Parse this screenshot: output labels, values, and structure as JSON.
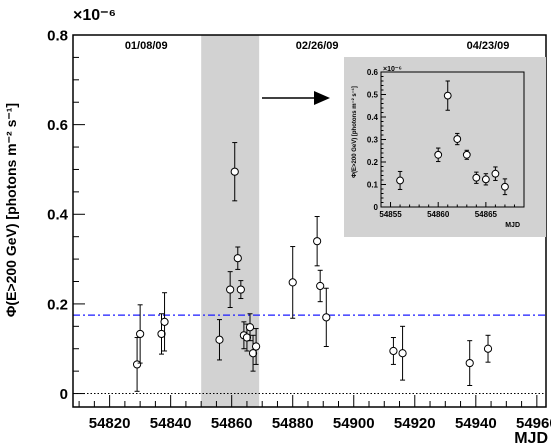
{
  "chart_data": [
    {
      "type": "scatter",
      "title": "",
      "xlabel": "MJD",
      "ylabel": "Φ(E>200 GeV) [photons m⁻² s⁻¹]",
      "y_multiplier": "×10⁻⁶",
      "xlim": [
        54808,
        54963
      ],
      "ylim": [
        -0.03,
        0.8
      ],
      "x_ticks": [
        54820,
        54840,
        54860,
        54880,
        54900,
        54920,
        54940,
        54960
      ],
      "x_tick_labels": [
        "54820",
        "54840",
        "54860",
        "54880",
        "54900",
        "54920",
        "54940",
        "54960"
      ],
      "y_ticks": [
        0,
        0.2,
        0.4,
        0.6,
        0.8
      ],
      "y_tick_labels": [
        "0",
        "0.2",
        "0.4",
        "0.6",
        "0.8"
      ],
      "date_annotations": [
        {
          "x": 54832,
          "text": "01/08/09"
        },
        {
          "x": 54888,
          "text": "02/26/09"
        },
        {
          "x": 54944,
          "text": "04/23/09"
        }
      ],
      "highlight_region": [
        54850,
        54869
      ],
      "mean_line": 0.175,
      "zero_line": 0,
      "points": [
        {
          "x": 54829,
          "y": 0.065,
          "err": 0.06
        },
        {
          "x": 54830,
          "y": 0.133,
          "err": 0.065
        },
        {
          "x": 54837,
          "y": 0.133,
          "err": 0.045
        },
        {
          "x": 54838,
          "y": 0.16,
          "err": 0.065
        },
        {
          "x": 54856,
          "y": 0.12,
          "err": 0.045
        },
        {
          "x": 54859.5,
          "y": 0.232,
          "err": 0.04
        },
        {
          "x": 54861,
          "y": 0.495,
          "err": 0.065
        },
        {
          "x": 54862,
          "y": 0.302,
          "err": 0.025
        },
        {
          "x": 54863,
          "y": 0.232,
          "err": 0.02
        },
        {
          "x": 54864,
          "y": 0.13,
          "err": 0.03
        },
        {
          "x": 54865,
          "y": 0.125,
          "err": 0.03
        },
        {
          "x": 54866,
          "y": 0.148,
          "err": 0.03
        },
        {
          "x": 54867,
          "y": 0.09,
          "err": 0.04
        },
        {
          "x": 54868,
          "y": 0.105,
          "err": 0.04
        },
        {
          "x": 54880,
          "y": 0.248,
          "err": 0.08
        },
        {
          "x": 54888,
          "y": 0.34,
          "err": 0.055
        },
        {
          "x": 54889,
          "y": 0.24,
          "err": 0.035
        },
        {
          "x": 54891,
          "y": 0.17,
          "err": 0.065
        },
        {
          "x": 54913,
          "y": 0.095,
          "err": 0.03
        },
        {
          "x": 54916,
          "y": 0.09,
          "err": 0.06
        },
        {
          "x": 54938,
          "y": 0.068,
          "err": 0.05
        },
        {
          "x": 54944,
          "y": 0.1,
          "err": 0.03
        }
      ]
    },
    {
      "type": "scatter",
      "title": "",
      "xlabel": "MJD",
      "ylabel": "Φ(E>200 GeV) [photons m⁻² s⁻¹]",
      "y_multiplier": "×10⁻⁶",
      "xlim": [
        54854,
        54869
      ],
      "ylim": [
        0,
        0.6
      ],
      "x_ticks": [
        54855,
        54860,
        54865
      ],
      "x_tick_labels": [
        "54855",
        "54860",
        "54865"
      ],
      "y_ticks": [
        0,
        0.1,
        0.2,
        0.3,
        0.4,
        0.5,
        0.6
      ],
      "y_tick_labels": [
        "0",
        "0.1",
        "0.2",
        "0.3",
        "0.4",
        "0.5",
        "0.6"
      ],
      "points": [
        {
          "x": 54856,
          "y": 0.118,
          "err": 0.04
        },
        {
          "x": 54860,
          "y": 0.232,
          "err": 0.03
        },
        {
          "x": 54861,
          "y": 0.495,
          "err": 0.065
        },
        {
          "x": 54862,
          "y": 0.302,
          "err": 0.025
        },
        {
          "x": 54863,
          "y": 0.232,
          "err": 0.02
        },
        {
          "x": 54864,
          "y": 0.13,
          "err": 0.025
        },
        {
          "x": 54865,
          "y": 0.123,
          "err": 0.025
        },
        {
          "x": 54866,
          "y": 0.148,
          "err": 0.03
        },
        {
          "x": 54867,
          "y": 0.09,
          "err": 0.035
        }
      ]
    }
  ]
}
